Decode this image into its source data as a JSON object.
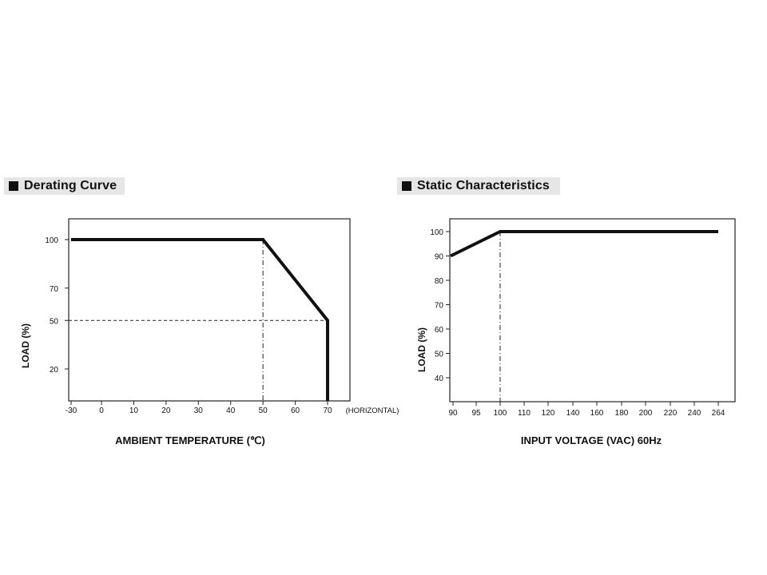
{
  "panels": [
    {
      "title": "Derating Curve"
    },
    {
      "title": "Static Characteristics"
    }
  ],
  "chart_data": [
    {
      "type": "line",
      "title": "Derating Curve",
      "xlabel": "AMBIENT TEMPERATURE (℃)",
      "ylabel": "LOAD (%)",
      "x_note": "(HORIZONTAL)",
      "xlim": [
        -30,
        70
      ],
      "ylim": [
        10,
        100
      ],
      "xticks": [
        "-30",
        "0",
        "10",
        "20",
        "30",
        "40",
        "50",
        "60",
        "70"
      ],
      "yticks": [
        "100",
        "70",
        "50",
        "20"
      ],
      "series": [
        {
          "x": [
            -30,
            50,
            70,
            70
          ],
          "y": [
            100,
            100,
            50,
            10
          ]
        }
      ],
      "reference_lines": [
        {
          "type": "vertical",
          "x": 50,
          "style": "dash-dot"
        },
        {
          "type": "horizontal",
          "y": 50,
          "style": "dashed"
        }
      ],
      "grid": false,
      "legend": "none"
    },
    {
      "type": "line",
      "title": "Static Characteristics",
      "xlabel": "INPUT VOLTAGE (VAC) 60Hz",
      "ylabel": "LOAD (%)",
      "xlim": [
        "90",
        "264"
      ],
      "ylim": [
        33,
        105
      ],
      "xticks": [
        "90",
        "95",
        "100",
        "110",
        "120",
        "140",
        "160",
        "180",
        "200",
        "220",
        "240",
        "264"
      ],
      "yticks": [
        "100",
        "90",
        "80",
        "70",
        "60",
        "50",
        "40"
      ],
      "series": [
        {
          "x": [
            "90",
            "100",
            "264"
          ],
          "y": [
            90,
            100,
            100
          ]
        }
      ],
      "reference_lines": [
        {
          "type": "vertical",
          "x": "100",
          "style": "dash-dot"
        }
      ],
      "grid": false,
      "legend": "none"
    }
  ]
}
